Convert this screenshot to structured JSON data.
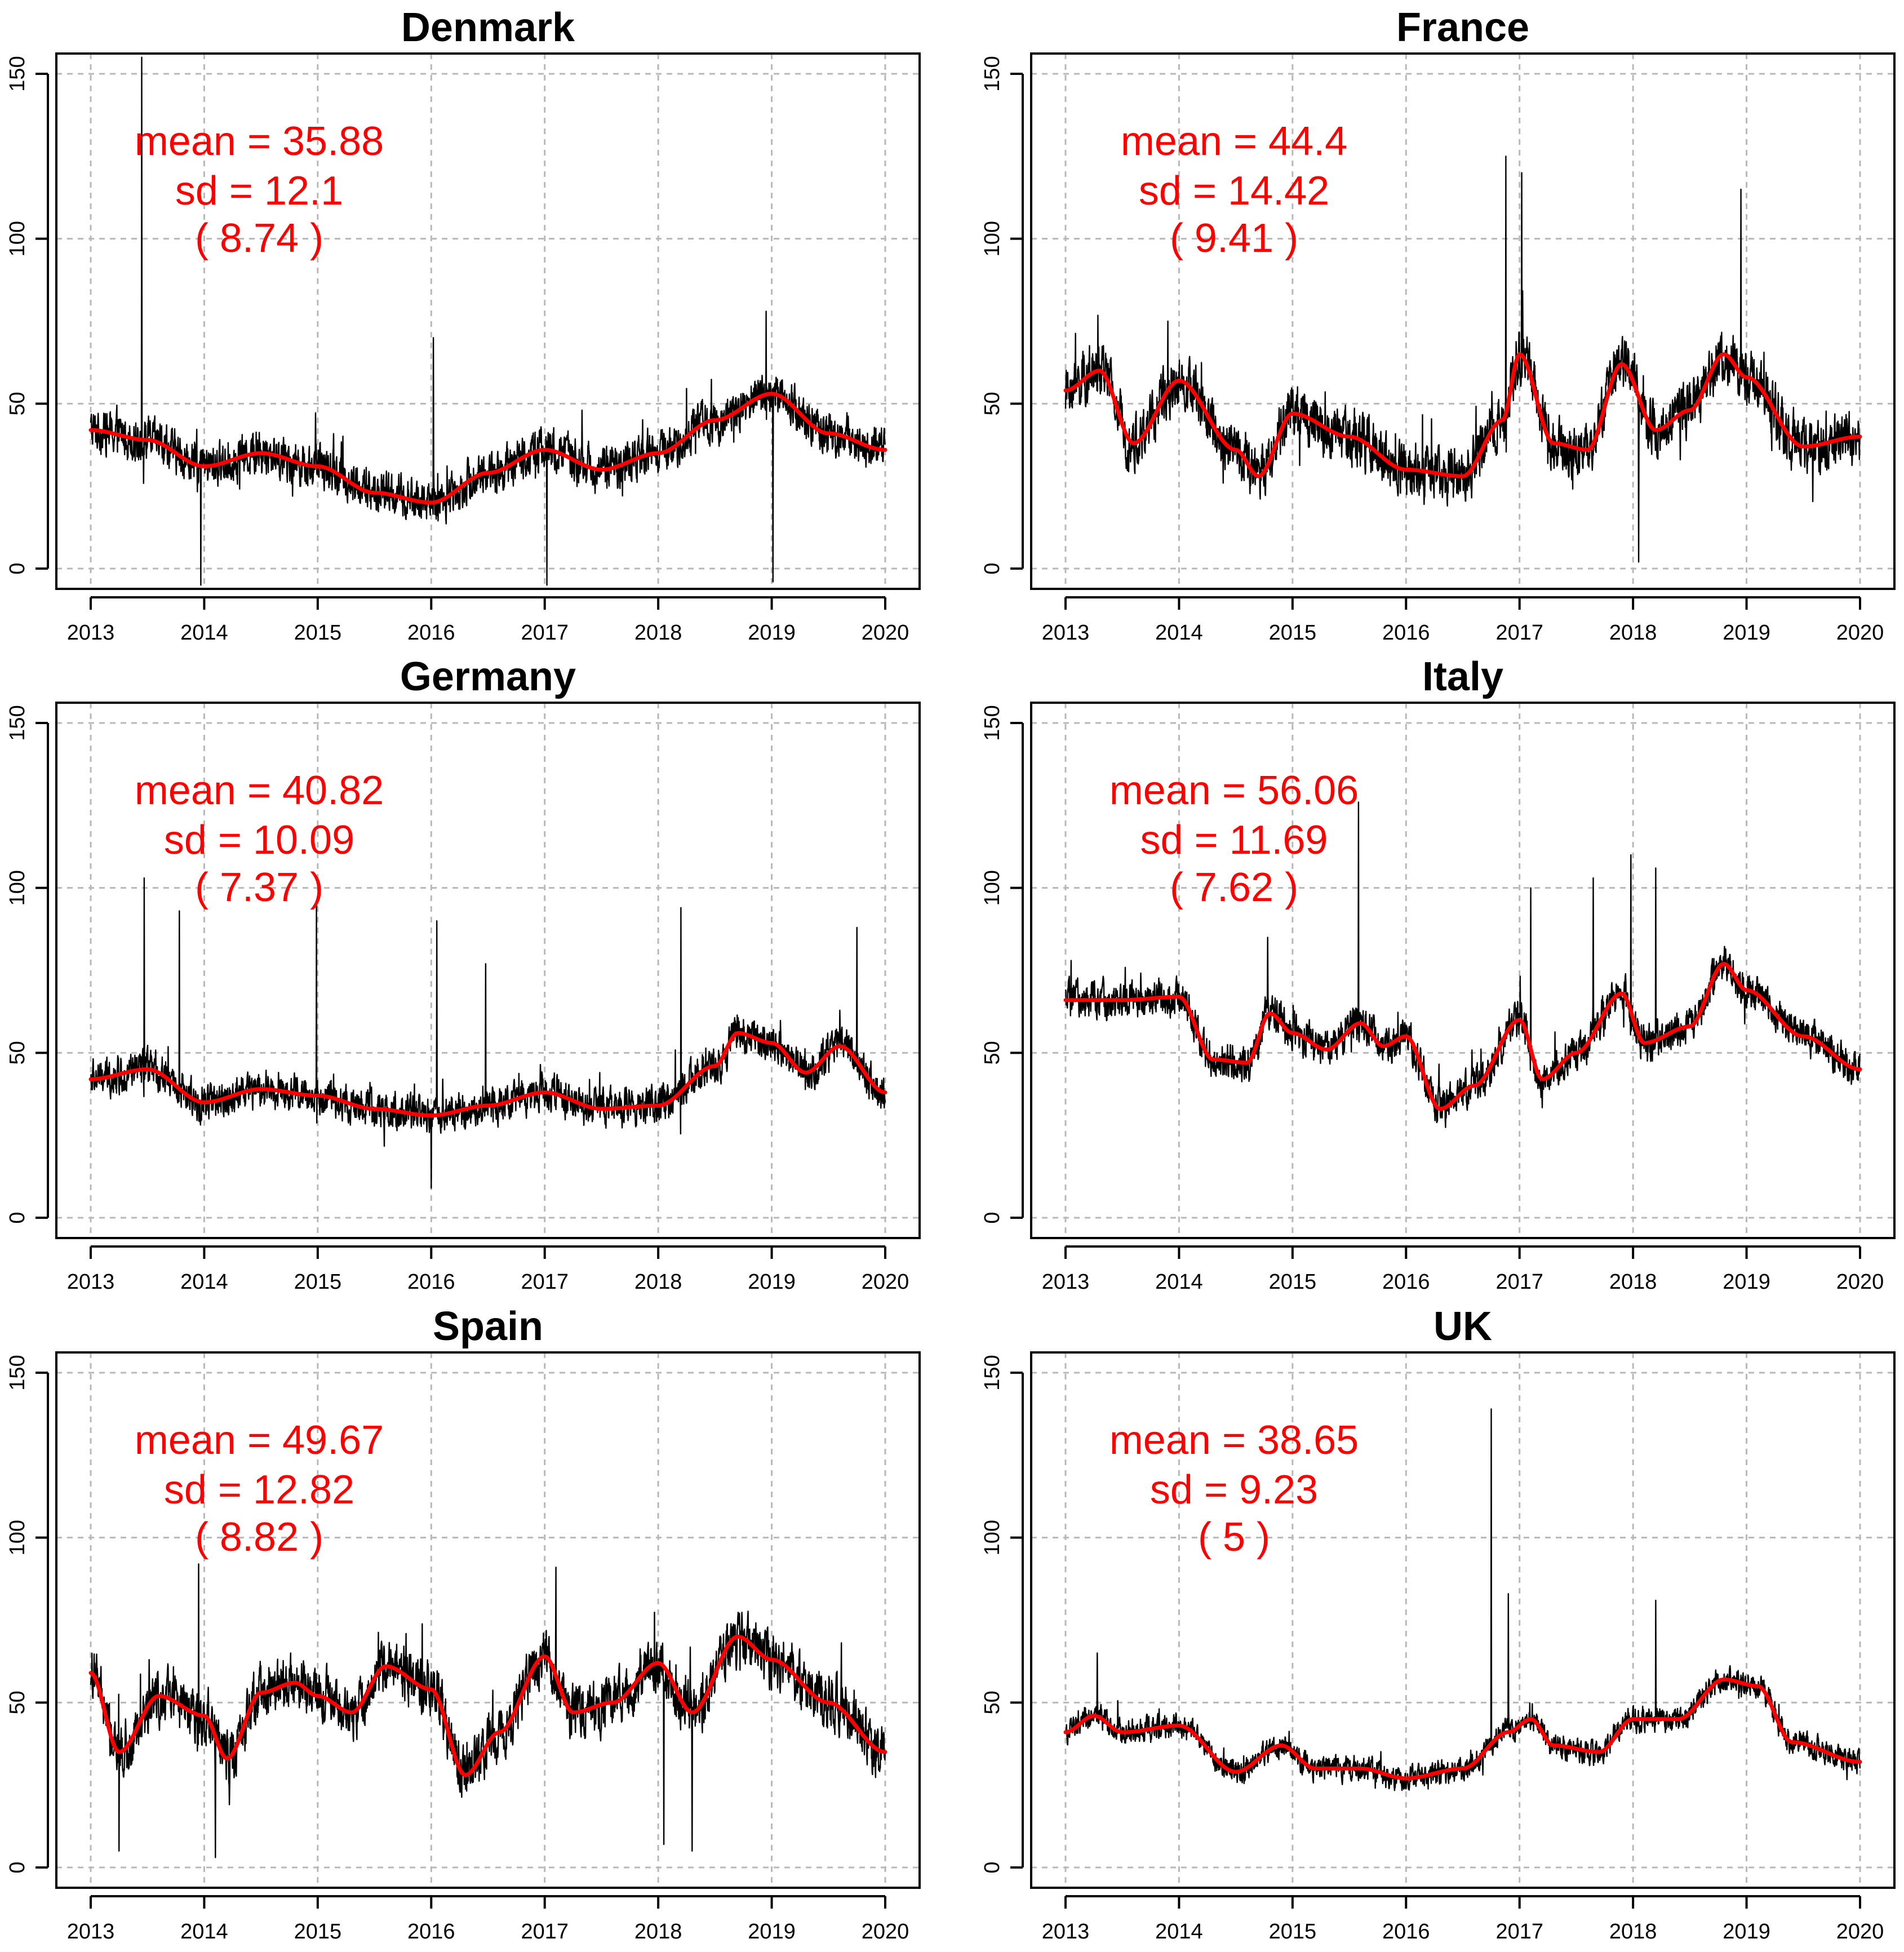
{
  "chart_data": [
    {
      "type": "line",
      "title": "Denmark",
      "x": [
        2013,
        2013.5,
        2014,
        2014.5,
        2015,
        2015.5,
        2016,
        2016.5,
        2017,
        2017.5,
        2018,
        2018.5,
        2019,
        2019.5,
        2020
      ],
      "smooth": [
        42,
        39,
        31,
        35,
        31,
        23,
        20,
        29,
        36,
        30,
        35,
        45,
        53,
        41,
        36
      ],
      "spikes": [
        {
          "x": 2013.45,
          "y": 155
        },
        {
          "x": 2013.97,
          "y": -5
        },
        {
          "x": 2016.02,
          "y": 70
        },
        {
          "x": 2017.02,
          "y": -5
        },
        {
          "x": 2018.95,
          "y": 78
        },
        {
          "x": 2019.01,
          "y": -4
        }
      ],
      "noise": 7,
      "annotation": {
        "mean": "mean = 35.88",
        "sd": "sd = 12.1",
        "paren": "( 8.74 )"
      },
      "xlim": [
        2013,
        2020
      ],
      "ylim": [
        0,
        150
      ],
      "xticks": [
        "2013",
        "2014",
        "2015",
        "2016",
        "2017",
        "2018",
        "2019",
        "2020"
      ],
      "yticks": [
        "0",
        "50",
        "100",
        "150"
      ]
    },
    {
      "type": "line",
      "title": "France",
      "x": [
        2013,
        2013.3,
        2013.6,
        2014,
        2014.5,
        2014.7,
        2015,
        2015.5,
        2016,
        2016.5,
        2016.85,
        2017,
        2017.3,
        2017.6,
        2017.9,
        2018.2,
        2018.5,
        2018.8,
        2019,
        2019.5,
        2020
      ],
      "smooth": [
        54,
        60,
        38,
        57,
        36,
        28,
        47,
        40,
        30,
        28,
        45,
        65,
        38,
        36,
        62,
        42,
        48,
        65,
        58,
        37,
        40
      ],
      "spikes": [
        {
          "x": 2016.88,
          "y": 125
        },
        {
          "x": 2017.02,
          "y": 120
        },
        {
          "x": 2018.95,
          "y": 115
        },
        {
          "x": 2018.05,
          "y": 2
        },
        {
          "x": 2013.9,
          "y": 75
        }
      ],
      "noise": 9,
      "annotation": {
        "mean": "mean = 44.4",
        "sd": "sd = 14.42",
        "paren": "( 9.41 )"
      },
      "xlim": [
        2013,
        2020
      ],
      "ylim": [
        0,
        150
      ],
      "xticks": [
        "2013",
        "2014",
        "2015",
        "2016",
        "2017",
        "2018",
        "2019",
        "2020"
      ],
      "yticks": [
        "0",
        "50",
        "100",
        "150"
      ]
    },
    {
      "type": "line",
      "title": "Germany",
      "x": [
        2013,
        2013.5,
        2014,
        2014.5,
        2015,
        2015.5,
        2016,
        2016.5,
        2017,
        2017.5,
        2018,
        2018.5,
        2018.7,
        2019,
        2019.3,
        2019.6,
        2020
      ],
      "smooth": [
        42,
        45,
        35,
        39,
        37,
        33,
        31,
        34,
        38,
        33,
        34,
        46,
        56,
        53,
        44,
        52,
        38
      ],
      "spikes": [
        {
          "x": 2013.47,
          "y": 103
        },
        {
          "x": 2013.78,
          "y": 93
        },
        {
          "x": 2014.99,
          "y": 95
        },
        {
          "x": 2016.05,
          "y": 90
        },
        {
          "x": 2018.2,
          "y": 94
        },
        {
          "x": 2019.75,
          "y": 88
        },
        {
          "x": 2016.48,
          "y": 77
        },
        {
          "x": 2016.0,
          "y": 9
        }
      ],
      "noise": 6,
      "annotation": {
        "mean": "mean = 40.82",
        "sd": "sd = 10.09",
        "paren": "( 7.37 )"
      },
      "xlim": [
        2013,
        2020
      ],
      "ylim": [
        0,
        150
      ],
      "xticks": [
        "2013",
        "2014",
        "2015",
        "2016",
        "2017",
        "2018",
        "2019",
        "2020"
      ],
      "yticks": [
        "0",
        "50",
        "100",
        "150"
      ]
    },
    {
      "type": "line",
      "title": "Italy",
      "x": [
        2013,
        2013.5,
        2014,
        2014.3,
        2014.6,
        2014.8,
        2015,
        2015.3,
        2015.6,
        2015.8,
        2016,
        2016.3,
        2016.6,
        2017,
        2017.2,
        2017.5,
        2017.9,
        2018.1,
        2018.5,
        2018.8,
        2019,
        2019.5,
        2020
      ],
      "smooth": [
        66,
        66,
        67,
        48,
        47,
        62,
        56,
        51,
        59,
        52,
        55,
        33,
        40,
        60,
        42,
        50,
        68,
        53,
        58,
        77,
        69,
        55,
        45
      ],
      "spikes": [
        {
          "x": 2015.58,
          "y": 126
        },
        {
          "x": 2017.1,
          "y": 100
        },
        {
          "x": 2017.65,
          "y": 103
        },
        {
          "x": 2017.98,
          "y": 110
        },
        {
          "x": 2018.2,
          "y": 106
        },
        {
          "x": 2014.78,
          "y": 85
        }
      ],
      "noise": 6,
      "annotation": {
        "mean": "mean = 56.06",
        "sd": "sd = 11.69",
        "paren": "( 7.62 )"
      },
      "xlim": [
        2013,
        2020
      ],
      "ylim": [
        0,
        150
      ],
      "xticks": [
        "2013",
        "2014",
        "2015",
        "2016",
        "2017",
        "2018",
        "2019",
        "2020"
      ],
      "yticks": [
        "0",
        "50",
        "100",
        "150"
      ]
    },
    {
      "type": "line",
      "title": "Spain",
      "x": [
        2013,
        2013.25,
        2013.6,
        2014,
        2014.2,
        2014.5,
        2014.8,
        2015,
        2015.3,
        2015.6,
        2016,
        2016.3,
        2016.6,
        2017,
        2017.25,
        2017.6,
        2018,
        2018.3,
        2018.7,
        2019,
        2019.5,
        2020
      ],
      "smooth": [
        59,
        35,
        52,
        46,
        33,
        53,
        56,
        52,
        47,
        61,
        54,
        28,
        41,
        64,
        47,
        50,
        62,
        47,
        70,
        63,
        50,
        35
      ],
      "spikes": [
        {
          "x": 2013.95,
          "y": 92
        },
        {
          "x": 2017.1,
          "y": 91
        },
        {
          "x": 2014.1,
          "y": 3
        },
        {
          "x": 2013.25,
          "y": 5
        },
        {
          "x": 2018.05,
          "y": 7
        },
        {
          "x": 2018.3,
          "y": 5
        }
      ],
      "noise": 9,
      "annotation": {
        "mean": "mean = 49.67",
        "sd": "sd = 12.82",
        "paren": "( 8.82 )"
      },
      "xlim": [
        2013,
        2020
      ],
      "ylim": [
        0,
        150
      ],
      "xticks": [
        "2013",
        "2014",
        "2015",
        "2016",
        "2017",
        "2018",
        "2019",
        "2020"
      ],
      "yticks": [
        "0",
        "50",
        "100",
        "150"
      ]
    },
    {
      "type": "line",
      "title": "UK",
      "x": [
        2013,
        2013.25,
        2013.5,
        2014,
        2014.5,
        2014.9,
        2015.2,
        2015.6,
        2016,
        2016.5,
        2016.9,
        2017.1,
        2017.3,
        2017.7,
        2018,
        2018.4,
        2018.8,
        2019.1,
        2019.4,
        2020
      ],
      "smooth": [
        41,
        46,
        41,
        43,
        29,
        37,
        30,
        30,
        27,
        30,
        41,
        45,
        37,
        35,
        45,
        45,
        57,
        55,
        38,
        32
      ],
      "spikes": [
        {
          "x": 2016.75,
          "y": 139
        },
        {
          "x": 2016.9,
          "y": 83
        },
        {
          "x": 2018.2,
          "y": 81
        },
        {
          "x": 2013.28,
          "y": 65
        }
      ],
      "noise": 4,
      "annotation": {
        "mean": "mean = 38.65",
        "sd": "sd = 9.23",
        "paren": "( 5 )"
      },
      "xlim": [
        2013,
        2020
      ],
      "ylim": [
        0,
        150
      ],
      "xticks": [
        "2013",
        "2014",
        "2015",
        "2016",
        "2017",
        "2018",
        "2019",
        "2020"
      ],
      "yticks": [
        "0",
        "50",
        "100",
        "150"
      ]
    }
  ]
}
